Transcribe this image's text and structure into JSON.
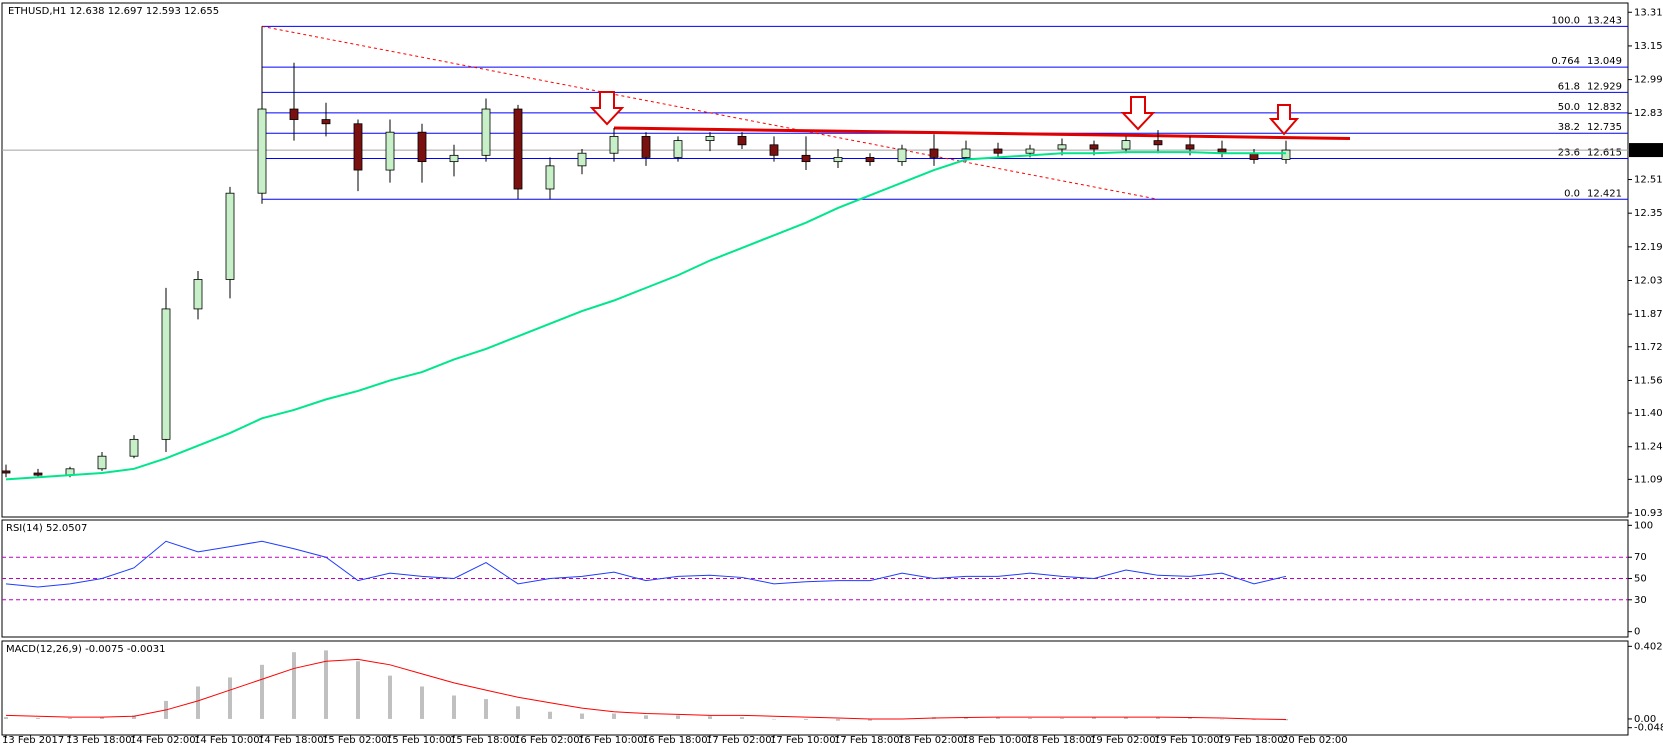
{
  "chart_data": [
    {
      "type": "candlestick",
      "title": "ETHUSD,H1 12.638 12.697 12.593 12.655",
      "categories": [
        "13 Feb 2017",
        null,
        "13 Feb 18:00",
        null,
        "14 Feb 02:00",
        null,
        "14 Feb 10:00",
        null,
        "14 Feb 18:00",
        null,
        "15 Feb 02:00",
        null,
        "15 Feb 10:00",
        null,
        "15 Feb 18:00",
        null,
        "16 Feb 02:00",
        null,
        "16 Feb 10:00",
        null,
        "16 Feb 18:00",
        null,
        "17 Feb 02:00",
        null,
        "17 Feb 10:00",
        null,
        "17 Feb 18:00",
        null,
        "18 Feb 02:00",
        null,
        "18 Feb 10:00",
        null,
        "18 Feb 18:00",
        null,
        "19 Feb 02:00",
        null,
        "19 Feb 10:00",
        null,
        "19 Feb 18:00",
        null,
        "20 Feb 02:00"
      ],
      "open": [
        11.13,
        11.12,
        11.11,
        11.14,
        11.2,
        11.28,
        11.9,
        12.04,
        12.45,
        12.85,
        12.8,
        12.78,
        12.56,
        12.74,
        12.6,
        12.63,
        12.85,
        12.47,
        12.58,
        12.64,
        12.72,
        12.62,
        12.7,
        12.72,
        12.68,
        12.63,
        12.6,
        12.62,
        12.6,
        12.66,
        12.62,
        12.66,
        12.64,
        12.66,
        12.68,
        12.66,
        12.7,
        12.68,
        12.66,
        12.64,
        12.61
      ],
      "high": [
        11.16,
        11.14,
        11.15,
        11.22,
        11.3,
        12.0,
        12.08,
        12.48,
        13.243,
        13.07,
        12.88,
        12.8,
        12.8,
        12.78,
        12.68,
        12.9,
        12.87,
        12.62,
        12.66,
        12.76,
        12.74,
        12.72,
        12.74,
        12.74,
        12.72,
        12.72,
        12.66,
        12.64,
        12.68,
        12.73,
        12.7,
        12.69,
        12.68,
        12.71,
        12.7,
        12.72,
        12.75,
        12.72,
        12.7,
        12.66,
        12.7
      ],
      "low": [
        11.1,
        11.1,
        11.1,
        11.13,
        11.19,
        11.22,
        11.85,
        11.95,
        12.4,
        12.7,
        12.72,
        12.46,
        12.5,
        12.5,
        12.53,
        12.6,
        12.421,
        12.42,
        12.54,
        12.6,
        12.58,
        12.6,
        12.65,
        12.66,
        12.6,
        12.56,
        12.57,
        12.58,
        12.58,
        12.58,
        12.6,
        12.62,
        12.62,
        12.63,
        12.63,
        12.64,
        12.64,
        12.63,
        12.62,
        12.59,
        12.59
      ],
      "close": [
        11.12,
        11.11,
        11.14,
        11.2,
        11.28,
        11.9,
        12.04,
        12.45,
        12.85,
        12.8,
        12.78,
        12.56,
        12.74,
        12.6,
        12.63,
        12.85,
        12.47,
        12.58,
        12.64,
        12.72,
        12.62,
        12.7,
        12.72,
        12.68,
        12.63,
        12.6,
        12.62,
        12.6,
        12.66,
        12.62,
        12.66,
        12.64,
        12.66,
        12.68,
        12.66,
        12.7,
        12.68,
        12.66,
        12.64,
        12.61,
        12.655
      ],
      "up_color": "#c8f0c8",
      "down_color": "#7a1010",
      "moving_average": {
        "color": "#00e68a",
        "values": [
          11.09,
          11.1,
          11.11,
          11.12,
          11.14,
          11.19,
          11.25,
          11.31,
          11.38,
          11.42,
          11.47,
          11.51,
          11.56,
          11.6,
          11.66,
          11.71,
          11.77,
          11.83,
          11.89,
          11.94,
          12.0,
          12.06,
          12.13,
          12.19,
          12.25,
          12.31,
          12.38,
          12.44,
          12.5,
          12.56,
          12.61,
          12.62,
          12.63,
          12.64,
          12.64,
          12.645,
          12.645,
          12.645,
          12.64,
          12.64,
          12.64
        ]
      },
      "current_price": 12.655,
      "fib_color": "#0000ff",
      "fib_start": 8,
      "fib_levels": [
        {
          "label": "100.0",
          "value": 13.243
        },
        {
          "label": "0.764",
          "value": 13.049
        },
        {
          "label": "61.8",
          "value": 12.929
        },
        {
          "label": "50.0",
          "value": 12.832
        },
        {
          "label": "38.2",
          "value": 12.735
        },
        {
          "label": "23.6",
          "value": 12.615
        },
        {
          "label": "0.0",
          "value": 12.421
        }
      ],
      "trendlines": [
        {
          "x": [
            8,
            36
          ],
          "y": [
            13.243,
            12.421
          ],
          "color": "#ff0000",
          "dashed": true
        },
        {
          "x": [
            19,
            42
          ],
          "y": [
            12.76,
            12.71
          ],
          "color": "#e00000",
          "dashed": false
        }
      ],
      "ylim": [
        10.911,
        13.354
      ],
      "yticks": [
        {
          "value": 13.31,
          "label": "13.310"
        },
        {
          "value": 13.15,
          "label": "13.150"
        },
        {
          "value": 12.99,
          "label": "12.990"
        },
        {
          "value": 12.83,
          "label": "12.830"
        },
        12.515,
        12.355,
        12.195,
        12.035,
        11.875,
        {
          "value": 11.72,
          "label": "11.720"
        },
        {
          "value": 11.56,
          "label": "11.560"
        },
        11.405,
        11.245,
        {
          "value": 11.09,
          "label": "11.090"
        },
        {
          "value": 10.93,
          "label": "10.930"
        }
      ]
    },
    {
      "type": "line",
      "title": "RSI(14) 52.0507",
      "color": "#1e3cff",
      "values": [
        45,
        42,
        45,
        50,
        60,
        85,
        75,
        80,
        85,
        78,
        70,
        48,
        55,
        52,
        50,
        65,
        45,
        50,
        52,
        56,
        48,
        52,
        53,
        51,
        45,
        47,
        48,
        48,
        55,
        50,
        52,
        52,
        55,
        52,
        50,
        58,
        53,
        52,
        55,
        45,
        52.05
      ],
      "level_lines": true,
      "level_color": "#c000c0",
      "ylim": [
        -5,
        105
      ],
      "yticks": [
        100,
        70,
        50,
        30,
        0
      ]
    },
    {
      "type": "macd",
      "title": "MACD(12,26,9) -0.0075 -0.0031",
      "histogram": {
        "color": "#c0c0c0",
        "values": [
          0.01,
          0.005,
          0.005,
          0.01,
          0.02,
          0.1,
          0.18,
          0.23,
          0.3,
          0.37,
          0.38,
          0.32,
          0.24,
          0.18,
          0.13,
          0.11,
          0.07,
          0.04,
          0.03,
          0.03,
          0.02,
          0.02,
          0.015,
          0.01,
          0.0,
          -0.005,
          -0.01,
          -0.01,
          0.0,
          0.01,
          0.01,
          0.01,
          0.005,
          0.005,
          0.01,
          0.01,
          0.01,
          0.005,
          0.0,
          -0.005,
          -0.0075
        ]
      },
      "signal": {
        "color": "#ff0000",
        "values": [
          0.02,
          0.015,
          0.01,
          0.01,
          0.015,
          0.05,
          0.1,
          0.16,
          0.22,
          0.28,
          0.32,
          0.33,
          0.3,
          0.25,
          0.2,
          0.16,
          0.12,
          0.09,
          0.06,
          0.04,
          0.03,
          0.025,
          0.02,
          0.02,
          0.015,
          0.01,
          0.005,
          0.0,
          0.0,
          0.005,
          0.008,
          0.01,
          0.01,
          0.01,
          0.01,
          0.01,
          0.01,
          0.008,
          0.005,
          0.0,
          -0.0031
        ]
      },
      "ylim": [
        -0.089,
        0.432
      ],
      "yticks": [
        0.4025,
        {
          "value": 0,
          "label": "0.00"
        },
        -0.0486
      ]
    }
  ]
}
